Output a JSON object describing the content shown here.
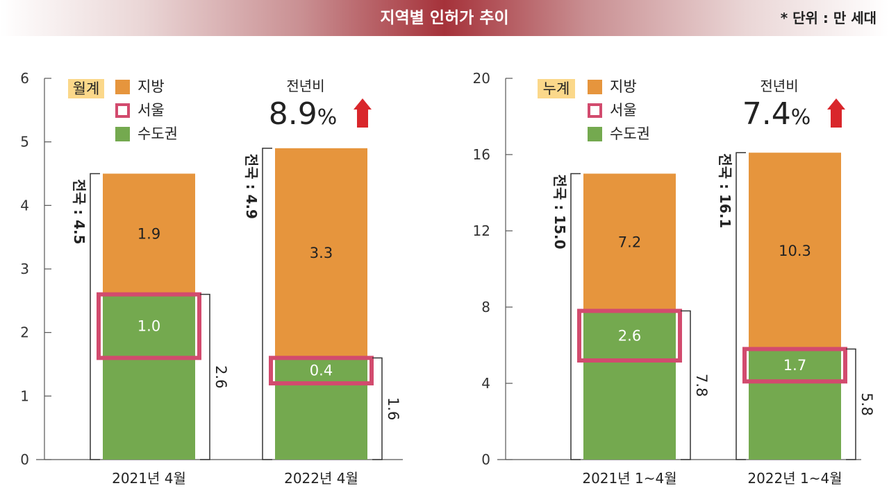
{
  "header": {
    "title": "지역별 인허가 추이",
    "unit_note": "* 단위 : 만 세대"
  },
  "colors": {
    "local": "#e6953d",
    "seoul_border": "#d24b6e",
    "metro": "#74a94f",
    "tag_bg": "#fbd88a",
    "arrow": "#d9262b",
    "axis": "#555555"
  },
  "legend_labels": [
    "지방",
    "서울",
    "수도권"
  ],
  "chart_data": [
    {
      "type": "bar",
      "stacked": true,
      "tag": "월계",
      "categories": [
        "2021년 4월",
        "2022년 4월"
      ],
      "series": [
        {
          "name": "수도권",
          "values": [
            2.6,
            1.6
          ]
        },
        {
          "name": "지방",
          "values": [
            1.9,
            3.3
          ]
        }
      ],
      "seoul": [
        1.0,
        0.4
      ],
      "seoul_labels": [
        "1.0",
        "0.4"
      ],
      "local_labels": [
        "1.9",
        "3.3"
      ],
      "metro_labels": [
        "2.6",
        "1.6"
      ],
      "totals": [
        4.5,
        4.9
      ],
      "total_labels": [
        "전국 : 4.5",
        "전국 : 4.9"
      ],
      "yoy_label": "전년비",
      "yoy_value": "8.9",
      "yoy_unit": "%",
      "ylim": [
        0,
        6
      ],
      "yticks": [
        0,
        1,
        2,
        3,
        4,
        5,
        6
      ],
      "ytick_labels": [
        "0",
        "1",
        "2",
        "3",
        "4",
        "5",
        "6"
      ]
    },
    {
      "type": "bar",
      "stacked": true,
      "tag": "누계",
      "categories": [
        "2021년 1~4월",
        "2022년 1~4월"
      ],
      "series": [
        {
          "name": "수도권",
          "values": [
            7.8,
            5.8
          ]
        },
        {
          "name": "지방",
          "values": [
            7.2,
            10.3
          ]
        }
      ],
      "seoul": [
        2.6,
        1.7
      ],
      "seoul_labels": [
        "2.6",
        "1.7"
      ],
      "local_labels": [
        "7.2",
        "10.3"
      ],
      "metro_labels": [
        "7.8",
        "5.8"
      ],
      "totals": [
        15.0,
        16.1
      ],
      "total_labels": [
        "전국 : 15.0",
        "전국 : 16.1"
      ],
      "yoy_label": "전년비",
      "yoy_value": "7.4",
      "yoy_unit": "%",
      "ylim": [
        0,
        20
      ],
      "yticks": [
        0,
        4,
        8,
        12,
        16,
        20
      ],
      "ytick_labels": [
        "0",
        "4",
        "8",
        "12",
        "16",
        "20"
      ]
    }
  ]
}
